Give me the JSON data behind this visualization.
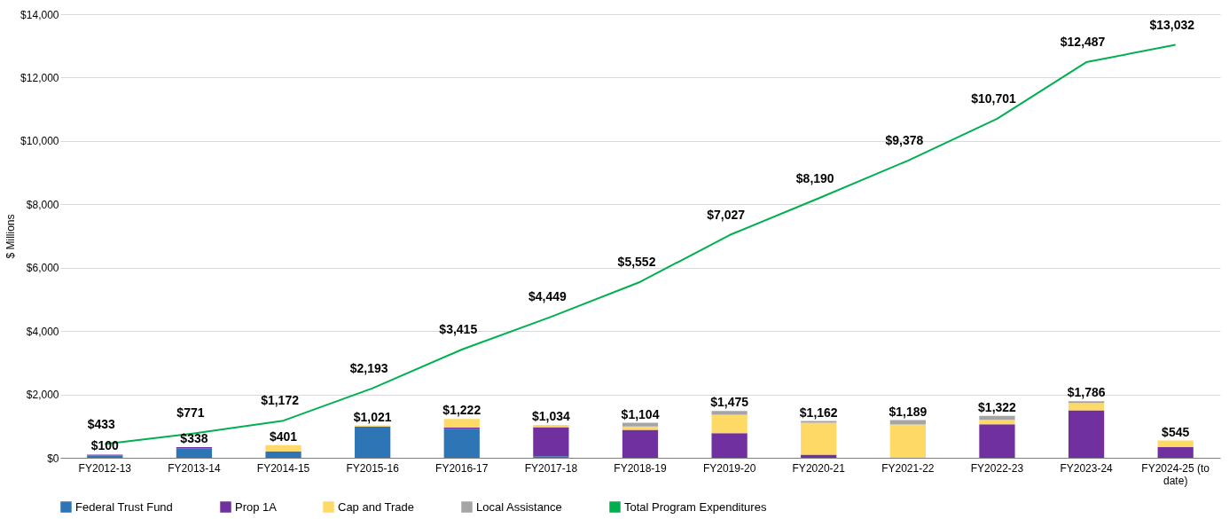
{
  "chart_data": {
    "type": "bar",
    "stacked": true,
    "ylabel": "$ Millions",
    "categories": [
      "FY2012-13",
      "FY2013-14",
      "FY2014-15",
      "FY2015-16",
      "FY2016-17",
      "FY2017-18",
      "FY2018-19",
      "FY2019-20",
      "FY2020-21",
      "FY2021-22",
      "FY2022-23",
      "FY2023-24",
      "FY2024-25 (to date)"
    ],
    "series": [
      {
        "name": "Federal Trust Fund",
        "color": "#2e75b6",
        "values": [
          70,
          300,
          200,
          990,
          920,
          50,
          0,
          0,
          0,
          0,
          0,
          0,
          0
        ]
      },
      {
        "name": "Prop 1A",
        "color": "#7030a0",
        "values": [
          30,
          38,
          0,
          0,
          40,
          915,
          880,
          780,
          100,
          0,
          1060,
          1500,
          340
        ]
      },
      {
        "name": "Cap and Trade",
        "color": "#ffd966",
        "values": [
          0,
          0,
          201,
          31,
          262,
          69,
          110,
          580,
          1006,
          1050,
          140,
          231,
          205
        ]
      },
      {
        "name": "Local Assistance",
        "color": "#a5a5a5",
        "values": [
          0,
          0,
          0,
          0,
          0,
          0,
          114,
          115,
          56,
          139,
          122,
          55,
          0
        ]
      },
      {
        "name": "Total Program Expenditures",
        "type": "line",
        "color": "#00b050",
        "values": [
          433,
          771,
          1172,
          2193,
          3415,
          4449,
          5552,
          7027,
          8190,
          9378,
          10701,
          12487,
          13032
        ],
        "value_labels": [
          "$433",
          "$771",
          "$1,172",
          "$2,193",
          "$3,415",
          "$4,449",
          "$5,552",
          "$7,027",
          "$8,190",
          "$9,378",
          "$10,701",
          "$12,487",
          "$13,032"
        ]
      }
    ],
    "totals": [
      "$100",
      "$338",
      "$401",
      "$1,021",
      "$1,222",
      "$1,034",
      "$1,104",
      "$1,475",
      "$1,162",
      "$1,189",
      "$1,322",
      "$1,786",
      "$545"
    ],
    "ylim": [
      0,
      14000
    ],
    "yticks": [
      {
        "value": 0,
        "label": "$0"
      },
      {
        "value": 2000,
        "label": "$2,000"
      },
      {
        "value": 4000,
        "label": "$4,000"
      },
      {
        "value": 6000,
        "label": "$6,000"
      },
      {
        "value": 8000,
        "label": "$8,000"
      },
      {
        "value": 10000,
        "label": "$10,000"
      },
      {
        "value": 12000,
        "label": "$12,000"
      },
      {
        "value": 14000,
        "label": "$14,000"
      }
    ],
    "grid": "y",
    "legend": "bottom"
  }
}
